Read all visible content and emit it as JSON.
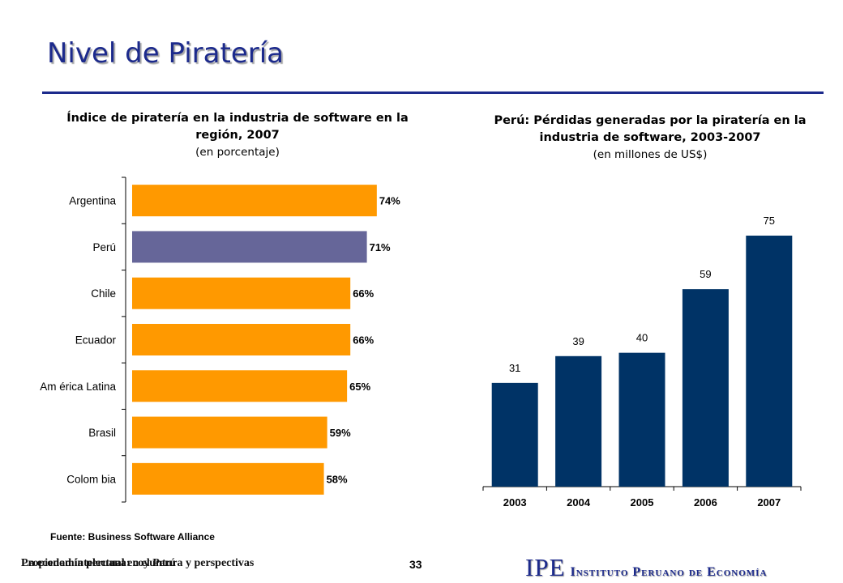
{
  "slide": {
    "title": "Nivel de Piratería"
  },
  "chart_data": [
    {
      "type": "bar",
      "orientation": "horizontal",
      "title": "Índice de piratería en la industria de software en la región, 2007",
      "subtitle": "(en porcentaje)",
      "categories": [
        "Argentina",
        "Perú",
        "Chile",
        "Ecuador",
        "Am érica Latina",
        "Brasil",
        "Colom bia"
      ],
      "values": [
        74,
        71,
        66,
        66,
        65,
        59,
        58
      ],
      "data_labels": [
        "74%",
        "71%",
        "66%",
        "66%",
        "65%",
        "59%",
        "58%"
      ],
      "bar_color": "#ff9900",
      "highlight_color": "#666699",
      "highlight_category": "Perú",
      "xlim": [
        0,
        80
      ]
    },
    {
      "type": "bar",
      "orientation": "vertical",
      "title": "Perú: Pérdidas generadas por la piratería en la industria de software, 2003-2007",
      "subtitle": "(en millones de US$)",
      "categories": [
        "2003",
        "2004",
        "2005",
        "2006",
        "2007"
      ],
      "values": [
        31,
        39,
        40,
        59,
        75
      ],
      "data_labels": [
        "31",
        "39",
        "40",
        "59",
        "75"
      ],
      "bar_color": "#003366",
      "ylim": [
        0,
        80
      ]
    }
  ],
  "source": "Fuente: Business Software Alliance",
  "footer": {
    "text_a": "La economía peruana: coyuntura y perspectivas",
    "text_b": "Propiedad intelectual en el Perú",
    "page": "33",
    "logo_mark": "IPE",
    "logo_name": "Instituto Peruano de Economía"
  }
}
